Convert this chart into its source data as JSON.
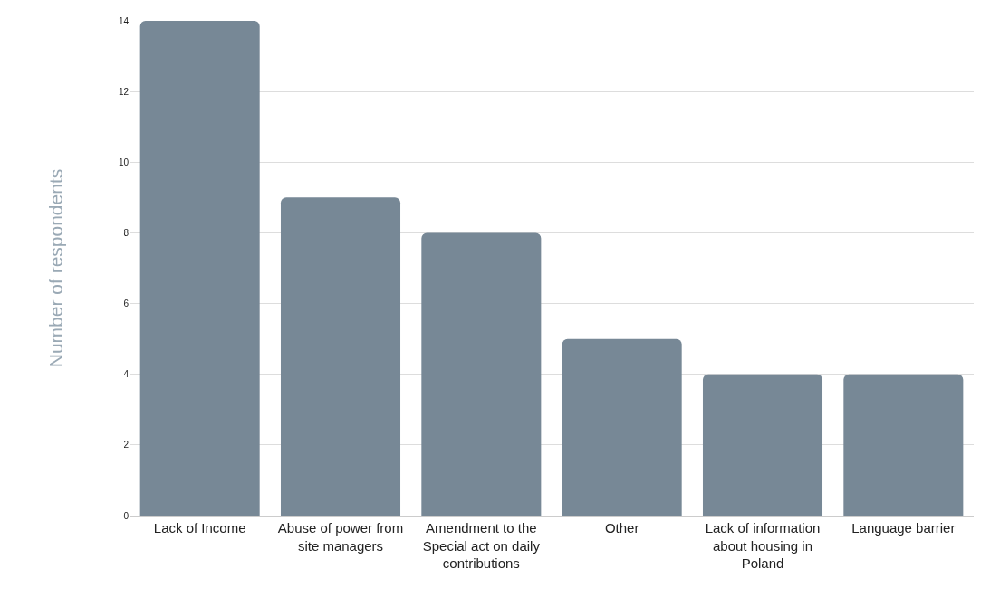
{
  "chart_data": {
    "type": "bar",
    "ylabel": "Number of respondents",
    "categories": [
      "Lack of Income",
      "Abuse of power from site managers",
      "Amendment to the Special act on daily contributions",
      "Other",
      "Lack of information about housing in Poland",
      "Language barrier"
    ],
    "values": [
      14,
      9,
      8,
      5,
      4,
      4
    ],
    "color": "#778896",
    "ylim": [
      0,
      14
    ],
    "yticks": [
      0,
      2,
      4,
      6,
      8,
      10,
      12,
      14
    ],
    "grid": "y",
    "legend": false
  }
}
